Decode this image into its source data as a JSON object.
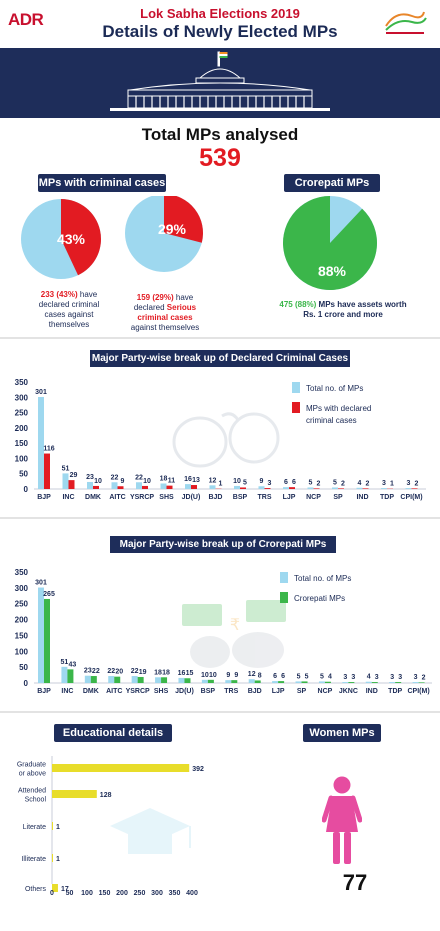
{
  "header": {
    "logo": "ADR",
    "subtitle": "Lok Sabha Elections 2019",
    "title": "Details of Newly Elected MPs"
  },
  "total": {
    "label": "Total MPs analysed",
    "value": "539"
  },
  "criminal": {
    "heading": "MPs with criminal cases",
    "pie1_pct": "43%",
    "pie1_fraction": 0.43,
    "pie1_caption_value": "233 (43%)",
    "pie1_caption_rest1": " have",
    "pie1_caption_rest2": "declared criminal",
    "pie1_caption_rest3": "cases against",
    "pie1_caption_rest4": "themselves",
    "pie2_pct": "29%",
    "pie2_fraction": 0.29,
    "pie2_caption_value": "159 (29%)",
    "pie2_caption_rest1": " have",
    "pie2_caption_rest2": "declared ",
    "pie2_caption_serious": "Serious",
    "pie2_caption_rest3": "criminal cases",
    "pie2_caption_rest4": "against themselves"
  },
  "crorepati": {
    "heading": "Crorepati MPs",
    "pct": "88%",
    "fraction": 0.88,
    "caption_value": "475 (88%)",
    "caption_rest1": " MPs have assets worth",
    "caption_rest2": "Rs. 1 crore and more"
  },
  "colors": {
    "navy": "#1e2d5a",
    "red": "#e21b22",
    "lightblue": "#9ed8ef",
    "green": "#3bb64a",
    "yellow": "#e8dd2a"
  },
  "chart_data": [
    {
      "type": "bar",
      "title": "Major Party-wise break up of Declared Criminal Cases",
      "categories": [
        "BJP",
        "INC",
        "DMK",
        "AITC",
        "YSRCP",
        "SHS",
        "JD(U)",
        "BJD",
        "BSP",
        "TRS",
        "LJP",
        "NCP",
        "SP",
        "IND",
        "TDP",
        "CPI(M)"
      ],
      "series": [
        {
          "name": "Total no. of MPs",
          "values": [
            301,
            51,
            23,
            22,
            22,
            18,
            16,
            12,
            10,
            9,
            6,
            5,
            5,
            4,
            3,
            3
          ]
        },
        {
          "name": "MPs with declared criminal cases",
          "values": [
            116,
            29,
            10,
            9,
            10,
            11,
            13,
            1,
            5,
            3,
            6,
            2,
            2,
            2,
            1,
            2
          ]
        }
      ],
      "yticks": [
        "0",
        "50",
        "100",
        "150",
        "200",
        "250",
        "300",
        "350"
      ],
      "ylim": [
        0,
        350
      ],
      "legend_position": "top-right"
    },
    {
      "type": "bar",
      "title": "Major Party-wise break up of Crorepati MPs",
      "categories": [
        "BJP",
        "INC",
        "DMK",
        "AITC",
        "YSRCP",
        "SHS",
        "JD(U)",
        "BSP",
        "TRS",
        "BJD",
        "LJP",
        "SP",
        "NCP",
        "JKNC",
        "IND",
        "TDP",
        "CPI(M)"
      ],
      "series": [
        {
          "name": "Total no. of MPs",
          "values": [
            301,
            51,
            23,
            22,
            22,
            18,
            16,
            10,
            9,
            12,
            6,
            5,
            5,
            3,
            4,
            3,
            3
          ]
        },
        {
          "name": "Crorepati MPs",
          "values": [
            265,
            43,
            22,
            20,
            19,
            18,
            15,
            10,
            9,
            8,
            6,
            5,
            4,
            3,
            3,
            3,
            2
          ]
        }
      ],
      "yticks": [
        "0",
        "50",
        "100",
        "150",
        "200",
        "250",
        "300",
        "350"
      ],
      "ylim": [
        0,
        350
      ],
      "legend_position": "top-right"
    },
    {
      "type": "bar",
      "orientation": "horizontal",
      "title": "Educational details",
      "categories": [
        "Graduate or above",
        "Attended School",
        "Literate",
        "Illiterate",
        "Others"
      ],
      "values": [
        392,
        128,
        1,
        1,
        17
      ],
      "xticks": [
        "0",
        "50",
        "100",
        "150",
        "200",
        "250",
        "300",
        "350",
        "400"
      ],
      "xlim": [
        0,
        400
      ]
    }
  ],
  "education": {
    "heading": "Educational details",
    "cat_labels": [
      [
        "Graduate",
        "or above"
      ],
      [
        "Attended",
        "School"
      ],
      [
        "Literate"
      ],
      [
        "Illiterate"
      ],
      [
        "Others"
      ]
    ]
  },
  "women": {
    "heading": "Women MPs",
    "value": "77"
  }
}
